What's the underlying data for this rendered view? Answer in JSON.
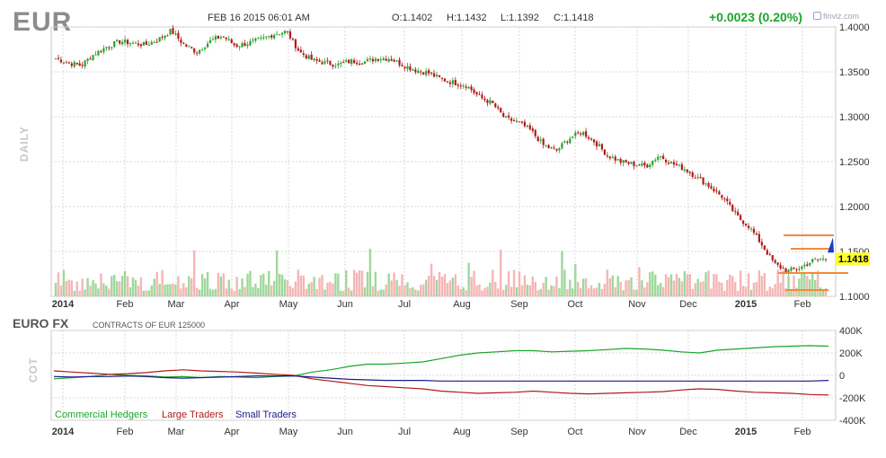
{
  "header": {
    "symbol": "EUR",
    "datetime": "FEB 16 2015 06:01 AM",
    "open": "O:1.1402",
    "high": "H:1.1432",
    "low": "L:1.1392",
    "close": "C:1.1418",
    "change": "+0.0023 (0.20%)",
    "brand": "finviz.com"
  },
  "price_panel": {
    "side_label": "DAILY",
    "last_price_label": "1.1418",
    "colors": {
      "up": "#2ca02c",
      "down": "#b11a1a",
      "volume_up": "#9fd89b",
      "volume_down": "#f4b6b6",
      "last_badge": "#ffff33",
      "levels": "#f28a3c"
    }
  },
  "cot_panel": {
    "title": "EURO FX",
    "subtitle": "CONTRACTS OF EUR 125000",
    "side_label": "COT"
  },
  "chart_data": [
    {
      "type": "candlestick",
      "x_ticks": [
        "2014",
        "Feb",
        "Mar",
        "Apr",
        "May",
        "Jun",
        "Jul",
        "Aug",
        "Sep",
        "Oct",
        "Nov",
        "Dec",
        "2015",
        "Feb"
      ],
      "y_ticks": [
        "1.4000",
        "1.3500",
        "1.3000",
        "1.2500",
        "1.2000",
        "1.1500",
        "1.1000"
      ],
      "ylim": [
        1.1,
        1.4
      ],
      "price_series": {
        "weeks": [
          "2014-01",
          "2014-02",
          "2014-03",
          "2014-04",
          "2014-05",
          "2014-06",
          "2014-07",
          "2014-08",
          "2014-09",
          "2014-10",
          "2014-11",
          "2014-12",
          "2015-01",
          "2015-02"
        ],
        "close_path": [
          1.365,
          1.36,
          1.357,
          1.37,
          1.378,
          1.384,
          1.382,
          1.38,
          1.386,
          1.396,
          1.38,
          1.372,
          1.384,
          1.39,
          1.379,
          1.382,
          1.386,
          1.392,
          1.395,
          1.372,
          1.363,
          1.36,
          1.358,
          1.362,
          1.361,
          1.365,
          1.365,
          1.358,
          1.352,
          1.349,
          1.342,
          1.338,
          1.335,
          1.322,
          1.315,
          1.298,
          1.294,
          1.285,
          1.268,
          1.262,
          1.276,
          1.283,
          1.272,
          1.257,
          1.25,
          1.247,
          1.245,
          1.257,
          1.248,
          1.242,
          1.232,
          1.222,
          1.21,
          1.19,
          1.178,
          1.158,
          1.136,
          1.128,
          1.132,
          1.14,
          1.142
        ]
      },
      "annotation_levels": [
        1.168,
        1.153,
        1.126,
        1.107
      ],
      "last_price": 1.1418
    },
    {
      "type": "line",
      "x_ticks": [
        "2014",
        "Feb",
        "Mar",
        "Apr",
        "May",
        "Jun",
        "Jul",
        "Aug",
        "Sep",
        "Oct",
        "Nov",
        "Dec",
        "2015",
        "Feb"
      ],
      "y_ticks": [
        "400K",
        "200K",
        "0",
        "-200K",
        "-400K"
      ],
      "ylim": [
        -400000,
        400000
      ],
      "series": [
        {
          "name": "Commercial Hedgers",
          "color": "#1aa52a",
          "values": [
            -30000,
            -20000,
            -10000,
            10000,
            0,
            -5000,
            -15000,
            -10000,
            -20000,
            -10000,
            -15000,
            -20000,
            -10000,
            -5000,
            30000,
            50000,
            80000,
            100000,
            100000,
            110000,
            120000,
            150000,
            180000,
            200000,
            210000,
            220000,
            220000,
            210000,
            215000,
            220000,
            230000,
            240000,
            235000,
            225000,
            210000,
            200000,
            225000,
            235000,
            245000,
            255000,
            260000,
            265000,
            260000
          ]
        },
        {
          "name": "Large Traders",
          "color": "#b11a1a",
          "values": [
            40000,
            30000,
            20000,
            10000,
            15000,
            25000,
            40000,
            50000,
            40000,
            35000,
            30000,
            20000,
            10000,
            0,
            -30000,
            -50000,
            -70000,
            -90000,
            -100000,
            -110000,
            -120000,
            -140000,
            -150000,
            -160000,
            -155000,
            -150000,
            -140000,
            -150000,
            -160000,
            -165000,
            -160000,
            -155000,
            -150000,
            -145000,
            -130000,
            -120000,
            -125000,
            -140000,
            -150000,
            -155000,
            -160000,
            -170000,
            -175000
          ]
        },
        {
          "name": "Small Traders",
          "color": "#1a1a8c",
          "values": [
            -10000,
            -15000,
            -10000,
            -10000,
            -5000,
            -10000,
            -20000,
            -25000,
            -20000,
            -15000,
            -10000,
            -5000,
            -5000,
            -5000,
            -15000,
            -25000,
            -35000,
            -40000,
            -45000,
            -45000,
            -45000,
            -50000,
            -50000,
            -50000,
            -50000,
            -50000,
            -50000,
            -50000,
            -50000,
            -50000,
            -50000,
            -50000,
            -50000,
            -50000,
            -50000,
            -50000,
            -50000,
            -50000,
            -50000,
            -50000,
            -50000,
            -50000,
            -45000
          ]
        }
      ]
    }
  ]
}
